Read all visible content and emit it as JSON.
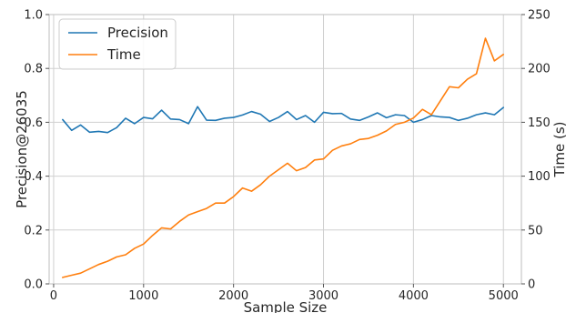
{
  "chart_data": {
    "type": "line",
    "xlabel": "Sample Size",
    "ylabel_left": "Precision@26035",
    "ylabel_right": "Time (s)",
    "xlim": [
      -50,
      5200
    ],
    "ylim_left": [
      0.0,
      1.0
    ],
    "ylim_right": [
      0,
      250
    ],
    "x_ticks": [
      0,
      1000,
      2000,
      3000,
      4000,
      5000
    ],
    "y_ticks_left": [
      0.0,
      0.2,
      0.4,
      0.6,
      0.8,
      1.0
    ],
    "y_ticks_right": [
      0,
      50,
      100,
      150,
      200,
      250
    ],
    "grid": true,
    "legend_position": "top-left",
    "x": [
      100,
      200,
      300,
      400,
      500,
      600,
      700,
      800,
      900,
      1000,
      1100,
      1200,
      1300,
      1400,
      1500,
      1600,
      1700,
      1800,
      1900,
      2000,
      2100,
      2200,
      2300,
      2400,
      2500,
      2600,
      2700,
      2800,
      2900,
      3000,
      3100,
      3200,
      3300,
      3400,
      3500,
      3600,
      3700,
      3800,
      3900,
      4000,
      4100,
      4200,
      4300,
      4400,
      4500,
      4600,
      4700,
      4800,
      4900,
      5000
    ],
    "series": [
      {
        "name": "Precision",
        "axis": "left",
        "color": "#1f77b4",
        "values": [
          0.61,
          0.57,
          0.59,
          0.563,
          0.566,
          0.562,
          0.58,
          0.615,
          0.595,
          0.618,
          0.613,
          0.645,
          0.612,
          0.61,
          0.595,
          0.658,
          0.608,
          0.607,
          0.615,
          0.618,
          0.627,
          0.64,
          0.63,
          0.603,
          0.618,
          0.64,
          0.61,
          0.625,
          0.6,
          0.637,
          0.632,
          0.633,
          0.612,
          0.607,
          0.62,
          0.635,
          0.617,
          0.628,
          0.625,
          0.6,
          0.61,
          0.625,
          0.62,
          0.618,
          0.607,
          0.615,
          0.628,
          0.635,
          0.628,
          0.655
        ]
      },
      {
        "name": "Time",
        "axis": "right",
        "color": "#ff7f0e",
        "values": [
          6,
          8,
          10,
          14,
          18,
          21,
          25,
          27,
          33,
          37,
          45,
          52,
          51,
          58,
          64,
          67,
          70,
          75,
          75,
          81,
          89,
          86,
          92,
          100,
          106,
          112,
          105,
          108,
          115,
          116,
          124,
          128,
          130,
          134,
          135,
          138,
          142,
          148,
          150,
          154,
          162,
          157,
          170,
          183,
          182,
          190,
          195,
          228,
          207,
          213
        ]
      }
    ]
  }
}
